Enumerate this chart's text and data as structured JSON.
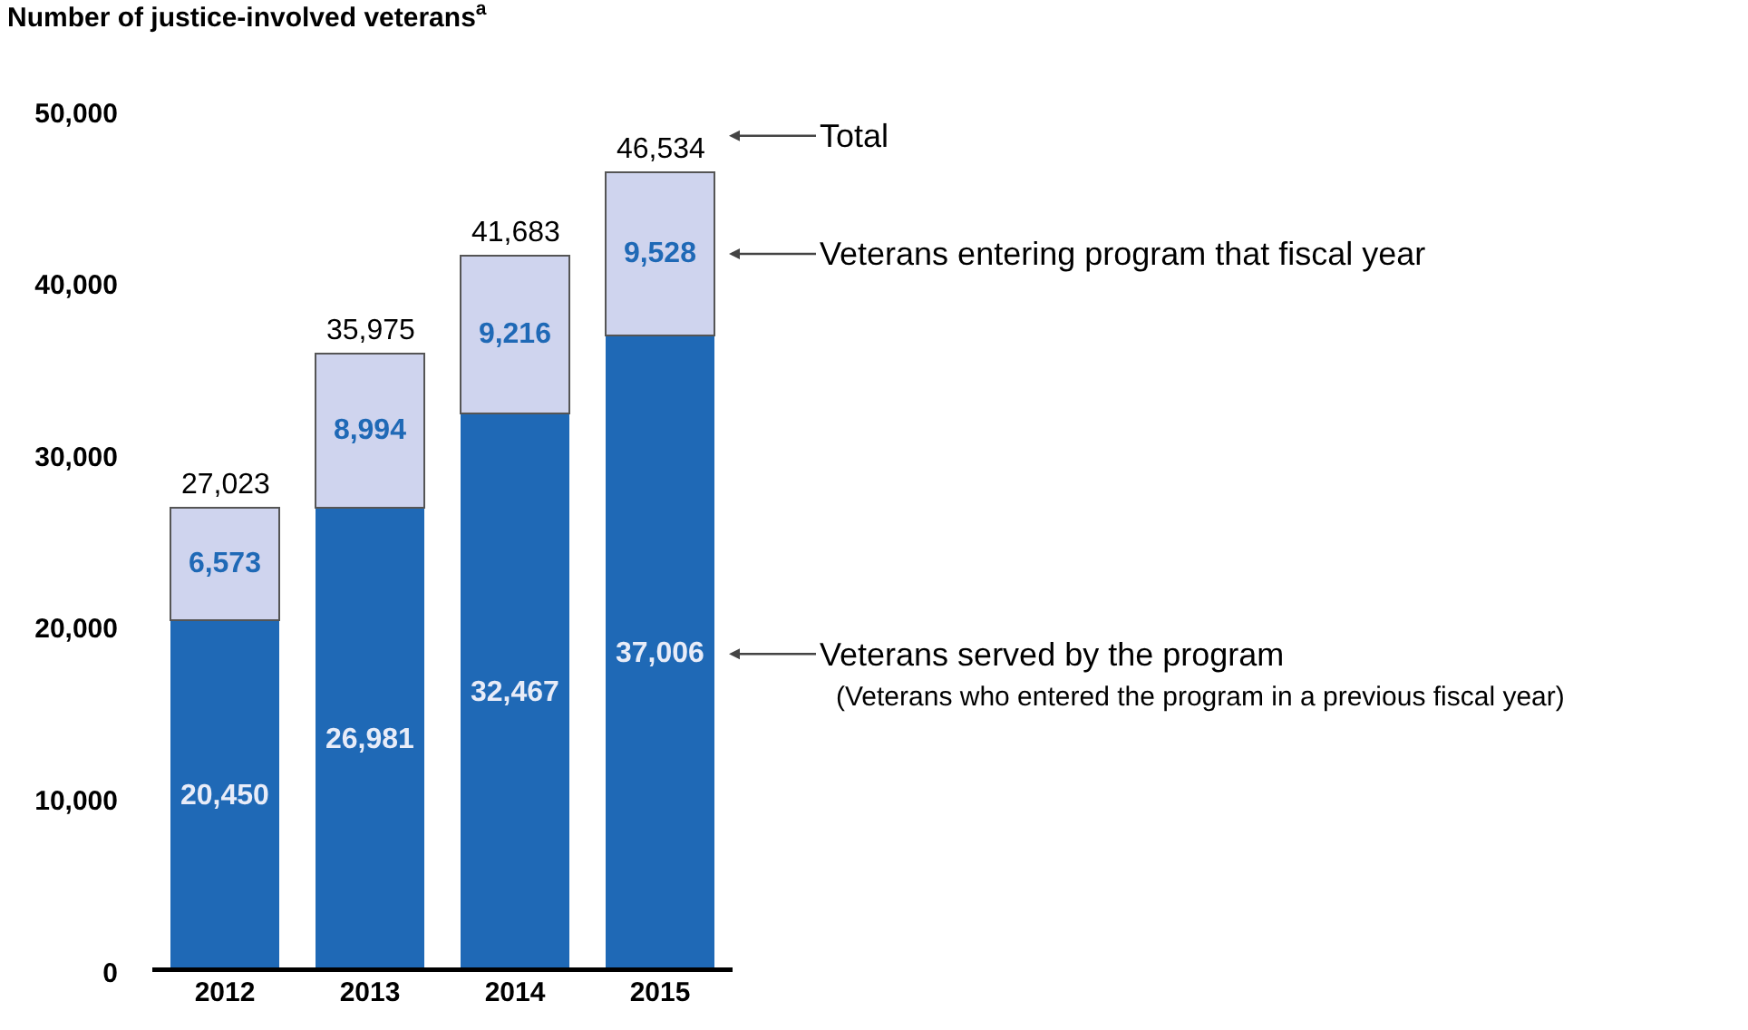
{
  "chart_data": {
    "type": "bar",
    "stacked": true,
    "ylabel": "Number of justice-involved veterans$^{a}$",
    "categories": [
      "2012",
      "2013",
      "2014",
      "2015"
    ],
    "series": [
      {
        "name": "Veterans served by the program",
        "color": "#1f69b6",
        "values": [
          20450,
          26981,
          32467,
          37006
        ],
        "value_labels": [
          "20,450",
          "26,981",
          "32,467",
          "37,006"
        ]
      },
      {
        "name": "Veterans entering program that fiscal year",
        "color": "#cfd4ee",
        "values": [
          6573,
          8994,
          9216,
          9528
        ],
        "value_labels": [
          "6,573",
          "8,994",
          "9,216",
          "9,528"
        ]
      }
    ],
    "totals": [
      "27,023",
      "35,975",
      "41,683",
      "46,534"
    ],
    "ylim": [
      0,
      50000
    ],
    "yticks": [
      {
        "value": 0,
        "label": "0"
      },
      {
        "value": 10000,
        "label": "10,000"
      },
      {
        "value": 20000,
        "label": "20,000"
      },
      {
        "value": 30000,
        "label": "30,000"
      },
      {
        "value": 40000,
        "label": "40,000"
      },
      {
        "value": 50000,
        "label": "50,000"
      }
    ],
    "grid": false,
    "legend": false,
    "annotations": [
      "Total",
      "(Veterans who entered the program in a previous fiscal year)"
    ]
  }
}
